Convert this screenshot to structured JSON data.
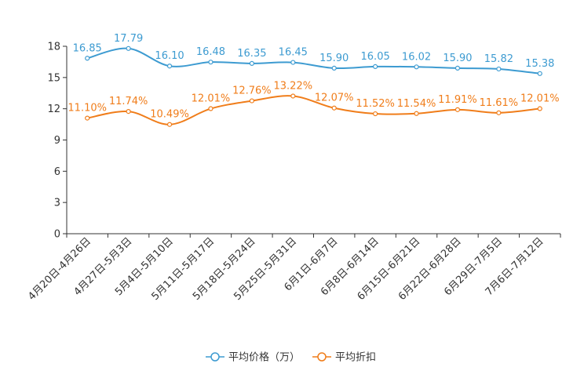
{
  "chart_data": {
    "type": "line",
    "title": "",
    "xlabel": "",
    "ylabel": "",
    "ylim": [
      0,
      18
    ],
    "yticks": [
      0,
      3,
      6,
      9,
      12,
      15,
      18
    ],
    "grid": false,
    "legend_position": "bottom-center",
    "categories": [
      "4月20日-4月26日",
      "4月27日-5月3日",
      "5月4日-5月10日",
      "5月11日-5月17日",
      "5月18日-5月24日",
      "5月25日-5月31日",
      "6月1日-6月7日",
      "6月8日-6月14日",
      "6月15日-6月21日",
      "6月22日-6月28日",
      "6月29日-7月5日",
      "7月6日-7月12日"
    ],
    "series": [
      {
        "name": "平均价格（万）",
        "color": "#3d9bd1",
        "values": [
          16.85,
          17.79,
          16.1,
          16.48,
          16.35,
          16.45,
          15.9,
          16.05,
          16.02,
          15.9,
          15.82,
          15.38
        ],
        "labels": [
          "16.85",
          "17.79",
          "16.10",
          "16.48",
          "16.35",
          "16.45",
          "15.90",
          "16.05",
          "16.02",
          "15.90",
          "15.82",
          "15.38"
        ]
      },
      {
        "name": "平均折扣",
        "color": "#f07d1a",
        "values": [
          11.1,
          11.74,
          10.49,
          12.01,
          12.76,
          13.22,
          12.07,
          11.52,
          11.54,
          11.91,
          11.61,
          12.01
        ],
        "labels": [
          "11.10%",
          "11.74%",
          "10.49%",
          "12.01%",
          "12.76%",
          "13.22%",
          "12.07%",
          "11.52%",
          "11.54%",
          "11.91%",
          "11.61%",
          "12.01%"
        ]
      }
    ]
  }
}
